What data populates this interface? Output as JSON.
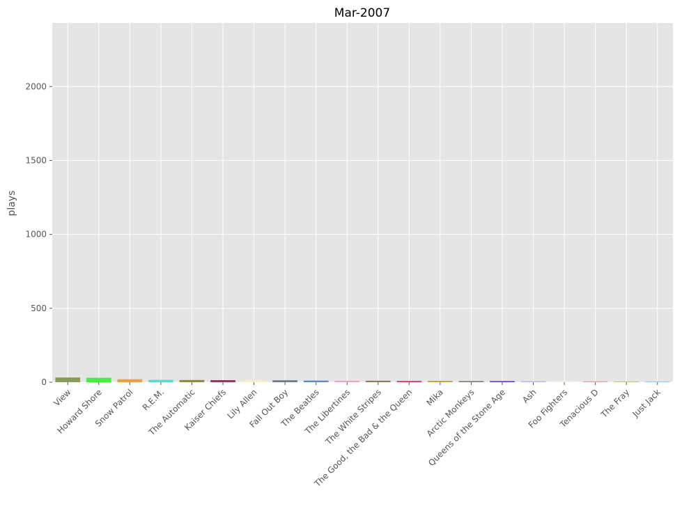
{
  "chart_data": {
    "type": "bar",
    "title": "Mar-2007",
    "xlabel": "",
    "ylabel": "plays",
    "ylim": [
      0,
      2430
    ],
    "yticks": [
      0,
      500,
      1000,
      1500,
      2000
    ],
    "grid": true,
    "categories": [
      "View",
      "Howard Shore",
      "Snow Patrol",
      "R.E.M.",
      "The Automatic",
      "Kaiser Chiefs",
      "Lily Allen",
      "Fall Out Boy",
      "The Beatles",
      "The Libertines",
      "The White Stripes",
      "The Good, the Bad & the Queen",
      "Mika",
      "Arctic Monkeys",
      "Queens of the Stone Age",
      "Ash",
      "Foo Fighters",
      "Tenacious D",
      "The Fray",
      "Just Jack"
    ],
    "values": [
      32,
      30,
      20,
      16,
      15,
      14,
      13,
      13,
      11,
      10,
      10,
      9,
      9,
      8,
      8,
      7,
      6,
      6,
      5,
      5
    ],
    "colors": [
      "#8a9a5b",
      "#44ee44",
      "#f0a040",
      "#60d8d0",
      "#8b8b4b",
      "#8b3a5a",
      "#f5f0c8",
      "#6b7b8b",
      "#5a8ac8",
      "#f5a0c8",
      "#8b7b5b",
      "#e04070",
      "#c8a040",
      "#8b8070",
      "#7040d8",
      "#c0b8e8",
      "#e8f8e0",
      "#d8a8a0",
      "#b8c890",
      "#a0c8e8"
    ]
  }
}
